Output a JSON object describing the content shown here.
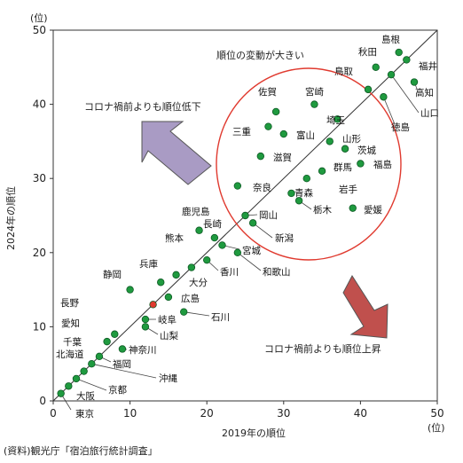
{
  "chart_data": {
    "type": "scatter",
    "xlabel": "2019年の順位",
    "ylabel": "2024年の順位",
    "x_unit": "(位)",
    "y_unit": "(位)",
    "xlim": [
      0,
      50
    ],
    "ylim": [
      0,
      50
    ],
    "x_ticks": [
      0,
      10,
      20,
      30,
      40,
      50
    ],
    "y_ticks": [
      0,
      10,
      20,
      30,
      40,
      50
    ],
    "grid": false,
    "reference_line": "y = x",
    "point_color": "#1f9a3f",
    "highlight_color": "#e03a2f",
    "points": [
      {
        "name": "東京",
        "x": 1,
        "y": 1
      },
      {
        "name": "大阪",
        "x": 2,
        "y": 2
      },
      {
        "name": "京都",
        "x": 3,
        "y": 3
      },
      {
        "name": "北海道",
        "x": 4,
        "y": 4
      },
      {
        "name": "沖縄",
        "x": 5,
        "y": 5
      },
      {
        "name": "福岡",
        "x": 6,
        "y": 6
      },
      {
        "name": "千葉",
        "x": 7,
        "y": 8
      },
      {
        "name": "神奈川",
        "x": 9,
        "y": 7
      },
      {
        "name": "愛知",
        "x": 8,
        "y": 9
      },
      {
        "name": "山梨",
        "x": 12,
        "y": 10
      },
      {
        "name": "静岡",
        "x": 10,
        "y": 15
      },
      {
        "name": "長野",
        "x": 13,
        "y": 13,
        "highlight": true
      },
      {
        "name": "岐阜",
        "x": 12,
        "y": 11
      },
      {
        "name": "兵庫",
        "x": 14,
        "y": 16
      },
      {
        "name": "広島",
        "x": 15,
        "y": 14
      },
      {
        "name": "石川",
        "x": 17,
        "y": 12
      },
      {
        "name": "熊本",
        "x": 16,
        "y": 17
      },
      {
        "name": "大分",
        "x": 18,
        "y": 18
      },
      {
        "name": "鹿児島",
        "x": 19,
        "y": 23
      },
      {
        "name": "香川",
        "x": 20,
        "y": 19
      },
      {
        "name": "長崎",
        "x": 21,
        "y": 22
      },
      {
        "name": "宮城",
        "x": 22,
        "y": 21
      },
      {
        "name": "和歌山",
        "x": 24,
        "y": 20
      },
      {
        "name": "岡山",
        "x": 25,
        "y": 25
      },
      {
        "name": "新潟",
        "x": 26,
        "y": 24
      },
      {
        "name": "奈良",
        "x": 24,
        "y": 29
      },
      {
        "name": "滋賀",
        "x": 27,
        "y": 33
      },
      {
        "name": "三重",
        "x": 28,
        "y": 37
      },
      {
        "name": "佐賀",
        "x": 29,
        "y": 39
      },
      {
        "name": "富山",
        "x": 30,
        "y": 36
      },
      {
        "name": "青森",
        "x": 31,
        "y": 28
      },
      {
        "name": "栃木",
        "x": 32,
        "y": 27
      },
      {
        "name": "岩手",
        "x": 33,
        "y": 30
      },
      {
        "name": "宮崎",
        "x": 34,
        "y": 40
      },
      {
        "name": "山形",
        "x": 36,
        "y": 35
      },
      {
        "name": "群馬",
        "x": 35,
        "y": 31
      },
      {
        "name": "埼玉",
        "x": 37,
        "y": 38
      },
      {
        "name": "茨城",
        "x": 38,
        "y": 34
      },
      {
        "name": "愛媛",
        "x": 39,
        "y": 26
      },
      {
        "name": "福島",
        "x": 40,
        "y": 32
      },
      {
        "name": "鳥取",
        "x": 41,
        "y": 42
      },
      {
        "name": "秋田",
        "x": 42,
        "y": 45
      },
      {
        "name": "徳島",
        "x": 43,
        "y": 41
      },
      {
        "name": "山口",
        "x": 44,
        "y": 44
      },
      {
        "name": "島根",
        "x": 45,
        "y": 47
      },
      {
        "name": "福井",
        "x": 46,
        "y": 46
      },
      {
        "name": "高知",
        "x": 47,
        "y": 43
      }
    ],
    "annotations": {
      "circle_label": "順位の変動が大きい",
      "up_label": "コロナ禍前よりも順位低下",
      "down_label": "コロナ禍前よりも順位上昇",
      "up_arrow_color": "#a99bc4",
      "down_arrow_color": "#c0504d",
      "circle_color": "#e03a2f"
    },
    "source": "(資料)観光庁「宿泊旅行統計調査」"
  }
}
